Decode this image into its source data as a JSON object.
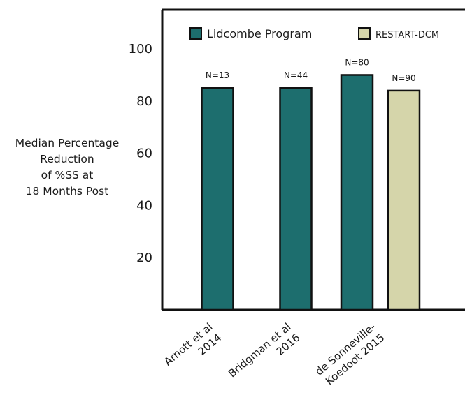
{
  "chart_data": {
    "type": "bar",
    "ylabel_lines": [
      "Median Percentage",
      "Reduction",
      "of %SS at",
      "18 Months Post"
    ],
    "ylim": [
      0,
      115
    ],
    "yticks": [
      20,
      40,
      60,
      80,
      100
    ],
    "grid": false,
    "legend_position": "top",
    "groups": [
      {
        "label_lines": [
          "Arnott et al",
          "2014"
        ]
      },
      {
        "label_lines": [
          "Bridgman et al",
          "2016"
        ]
      },
      {
        "label_lines": [
          "de Sonneville-",
          "Koedoot 2015"
        ]
      }
    ],
    "series": [
      {
        "name": "Lidcombe Program",
        "color": "#1d6e6e",
        "values": [
          85,
          85,
          90
        ],
        "annotations": [
          "N=13",
          "N=44",
          "N=80"
        ]
      },
      {
        "name": "RESTART-DCM",
        "color": "#d5d5aa",
        "values": [
          null,
          null,
          84
        ],
        "annotations": [
          null,
          null,
          "N=90"
        ]
      }
    ]
  }
}
